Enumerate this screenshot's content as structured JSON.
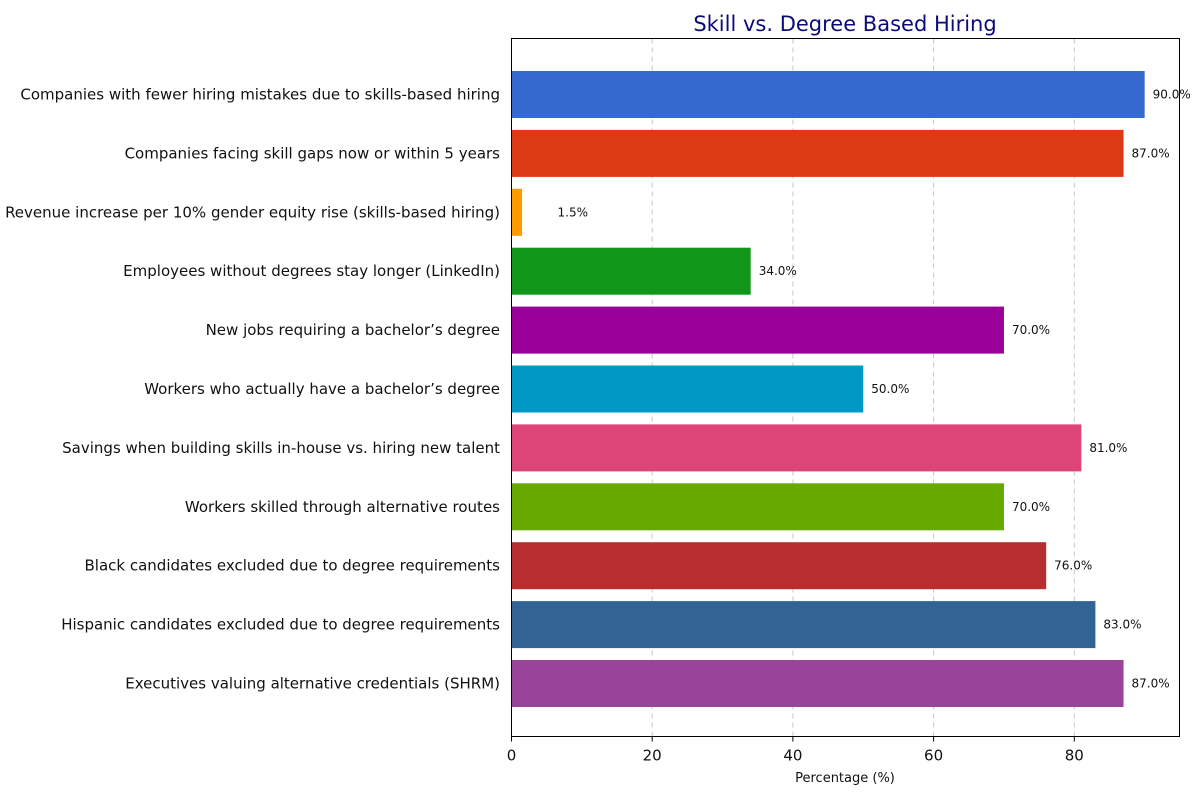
{
  "chart_data": {
    "type": "bar",
    "orientation": "horizontal",
    "title": "Skill vs. Degree Based Hiring",
    "xlabel": "Percentage (%)",
    "ylabel": "",
    "xlim": [
      0,
      95
    ],
    "xticks": [
      0,
      20,
      40,
      60,
      80
    ],
    "grid": "x-dashed",
    "categories": [
      "Companies with fewer hiring mistakes due to skills-based hiring",
      "Companies facing skill gaps now or within 5 years",
      "Revenue increase per 10% gender equity rise (skills-based hiring)",
      "Employees without degrees stay longer (LinkedIn)",
      "New jobs requiring a bachelor’s degree",
      "Workers who actually have a bachelor’s degree",
      "Savings when building skills in-house vs. hiring new talent",
      "Workers skilled through alternative routes",
      "Black candidates excluded due to degree requirements",
      "Hispanic candidates excluded due to degree requirements",
      "Executives valuing alternative credentials (SHRM)"
    ],
    "values": [
      90.0,
      87.0,
      1.5,
      34.0,
      70.0,
      50.0,
      81.0,
      70.0,
      76.0,
      83.0,
      87.0
    ],
    "value_labels": [
      "90.0%",
      "87.0%",
      "1.5%",
      "34.0%",
      "70.0%",
      "50.0%",
      "81.0%",
      "70.0%",
      "76.0%",
      "83.0%",
      "87.0%"
    ],
    "colors": [
      "#3569cf",
      "#dc3a13",
      "#ff9a00",
      "#109618",
      "#990099",
      "#0099c6",
      "#dd4477",
      "#66aa00",
      "#b82e2e",
      "#316395",
      "#994499"
    ]
  }
}
